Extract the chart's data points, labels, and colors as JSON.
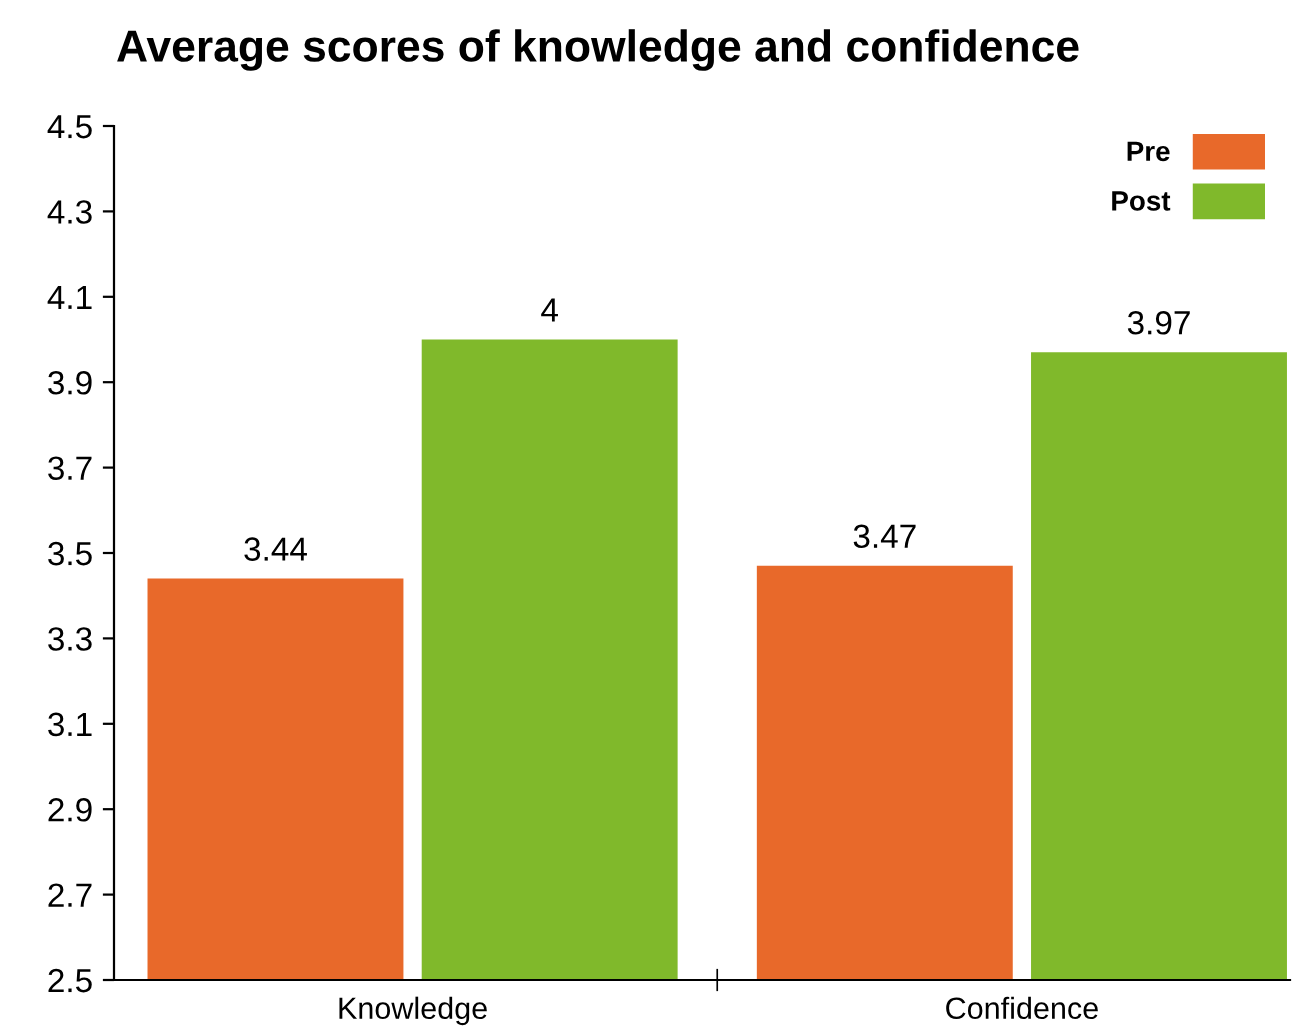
{
  "chart_data": {
    "type": "bar",
    "title": "Average scores of knowledge and confidence",
    "categories": [
      "Knowledge",
      "Confidence"
    ],
    "series": [
      {
        "name": "Pre",
        "color": "#e8692a",
        "values": [
          3.44,
          3.47
        ]
      },
      {
        "name": "Post",
        "color": "#80b92b",
        "values": [
          4,
          3.97
        ]
      }
    ],
    "ylim": [
      2.5,
      4.5
    ],
    "yticks": [
      2.5,
      2.7,
      2.9,
      3.1,
      3.3,
      3.5,
      3.7,
      3.9,
      4.1,
      4.3,
      4.5
    ],
    "data_labels": true,
    "legend": "top right",
    "grid": false
  }
}
